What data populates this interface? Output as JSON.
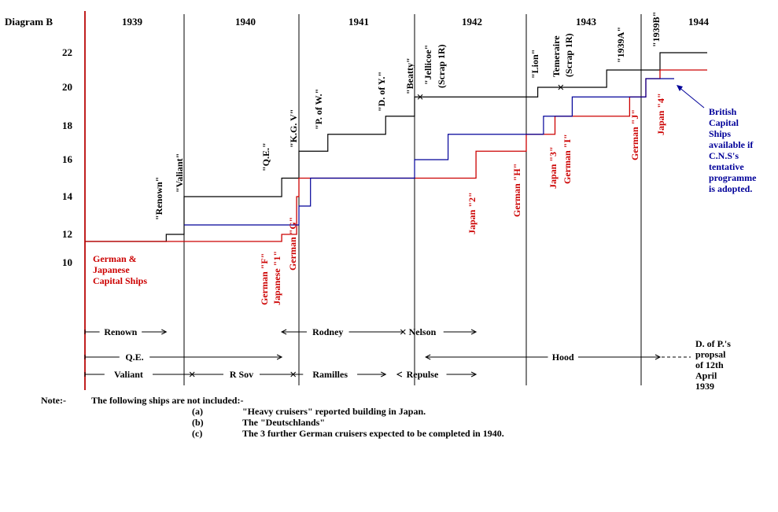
{
  "chart_data": {
    "type": "line",
    "title": "Diagram B",
    "years": [
      "1939",
      "1940",
      "1941",
      "1942",
      "1943",
      "1944"
    ],
    "y_ticks": [
      "10",
      "12",
      "14",
      "16",
      "18",
      "20",
      "22"
    ],
    "x_range": [
      1939.0,
      1945.0
    ],
    "series": [
      {
        "name": "British Capital Ships",
        "color": "#000000",
        "points": [
          [
            1939.0,
            11.5
          ],
          [
            1939.82,
            12.0
          ],
          [
            1940.0,
            14.0
          ],
          [
            1940.85,
            15.0
          ],
          [
            1941.0,
            16.5
          ],
          [
            1941.25,
            17.5
          ],
          [
            1941.75,
            18.5
          ],
          [
            1942.0,
            19.5
          ],
          [
            1943.1,
            20.0
          ],
          [
            1943.7,
            21.0
          ],
          [
            1944.2,
            22.0
          ],
          [
            1944.7,
            22.0
          ]
        ]
      },
      {
        "name": "German & Japanese Capital Ships",
        "color": "#cc0000",
        "points": [
          [
            1939.0,
            11.5
          ],
          [
            1940.85,
            12.0
          ],
          [
            1940.98,
            14.0
          ],
          [
            1941.0,
            15.0
          ],
          [
            1942.55,
            16.5
          ],
          [
            1943.0,
            17.5
          ],
          [
            1943.25,
            18.5
          ],
          [
            1943.9,
            19.5
          ],
          [
            1944.05,
            20.5
          ],
          [
            1944.2,
            21.0
          ],
          [
            1944.7,
            21.0
          ]
        ]
      },
      {
        "name": "British Capital Ships available if C.N.S's tentative programme is adopted.",
        "color": "#000099",
        "points": [
          [
            1940.0,
            12.5
          ],
          [
            1940.85,
            12.5
          ],
          [
            1941.0,
            13.5
          ],
          [
            1941.1,
            15.0
          ],
          [
            1942.0,
            16.0
          ],
          [
            1942.3,
            17.5
          ],
          [
            1943.0,
            17.5
          ],
          [
            1943.15,
            18.5
          ],
          [
            1943.4,
            19.5
          ],
          [
            1943.9,
            19.5
          ],
          [
            1944.05,
            20.5
          ],
          [
            1944.35,
            20.5
          ]
        ]
      }
    ],
    "black_annotations": [
      "\"Renown\"",
      "\"Valiant\"",
      "\"Q.E.\"",
      "\"K.G. V\"",
      "\"P. of W.\"",
      "\"D. of Y.\"",
      "\"Beatty\"",
      "\"Jellicoe\"",
      "(Scrap 1R)",
      "\"Lion\"",
      "Temeraire",
      "(Scrap 1R)",
      "\"1939A\"",
      "\"1939B\""
    ],
    "red_annotations": [
      "German \"F\"",
      "Japanese \"1\"",
      "German \"G\"",
      "Japan \"2\"",
      "German \"H\"",
      "Japan \"3\"",
      "German \"I\"",
      "German \"J\"",
      "Japan \"4\""
    ],
    "red_legend": [
      "German &",
      "Japanese",
      "Capital Ships"
    ],
    "blue_legend": [
      "British",
      "Capital",
      "Ships",
      "available if",
      "C.N.S's",
      "tentative",
      "programme",
      "is adopted."
    ],
    "timeline_rows": [
      [
        {
          "label": "Renown",
          "start": 1939.0,
          "end": 1939.82,
          "text_pos": 1939.36,
          "start_marker": "tick",
          "end_marker": "arrow"
        },
        {
          "label": "Rodney",
          "start": 1940.85,
          "end": 1941.9,
          "text_pos": 1941.25,
          "start_marker": "arrow",
          "end_marker": "cross"
        },
        {
          "label": "Nelson",
          "start": 1941.9,
          "end": 1942.55,
          "text_pos": 1942.07,
          "start_marker": "none",
          "end_marker": "arrow"
        }
      ],
      [
        {
          "label": "Q.E.",
          "start": 1939.0,
          "end": 1940.85,
          "text_pos": 1939.5,
          "start_marker": "tick",
          "end_marker": "arrow"
        },
        {
          "label": "Hood",
          "start": 1942.1,
          "end": 1944.2,
          "text_pos": 1943.32,
          "start_marker": "arrow",
          "end_marker": "arrow"
        }
      ],
      [
        {
          "label": "Valiant",
          "start": 1939.0,
          "end": 1940.07,
          "text_pos": 1939.44,
          "start_marker": "tick",
          "end_marker": "cross"
        },
        {
          "label": "R Sov",
          "start": 1940.07,
          "end": 1940.95,
          "text_pos": 1940.5,
          "start_marker": "none",
          "end_marker": "cross"
        },
        {
          "label": "Ramilles",
          "start": 1940.95,
          "end": 1941.75,
          "text_pos": 1941.27,
          "start_marker": "none",
          "end_marker": "arrow"
        },
        {
          "label": "Repulse",
          "start": 1941.85,
          "end": 1942.55,
          "text_pos": 1942.07,
          "start_marker": "arrow",
          "end_marker": "arrow"
        }
      ]
    ],
    "proposal_note": [
      "D. of P.'s",
      "propsal",
      "of 12th",
      "April",
      "1939"
    ]
  },
  "notes": {
    "label": "Note:-",
    "intro": "The following ships are not included:-",
    "items": [
      {
        "marker": "(a)",
        "text": "\"Heavy cruisers\" reported building in Japan."
      },
      {
        "marker": "(b)",
        "text": "The \"Deutschlands\""
      },
      {
        "marker": "(c)",
        "text": "The 3 further German cruisers expected to be completed in 1940."
      }
    ]
  },
  "colors": {
    "british": "#000000",
    "axis": "#c02020",
    "red": "#cc0000",
    "blue": "#000099"
  }
}
